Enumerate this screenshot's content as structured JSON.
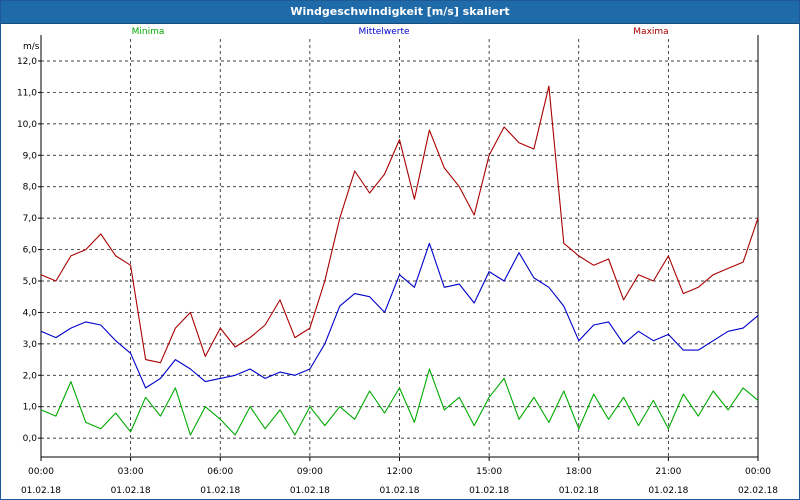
{
  "window": {
    "title": "Windgeschwindigkeit [m/s] skaliert"
  },
  "chart_data": {
    "type": "line",
    "title": "Windgeschwindigkeit [m/s] skaliert",
    "ylabel": "m/s",
    "ylim": [
      -0.6,
      12.7
    ],
    "xlim": [
      0,
      24
    ],
    "grid": true,
    "legend_position": "top",
    "y_ticks": [
      "0,0",
      "1,0",
      "2,0",
      "3,0",
      "4,0",
      "5,0",
      "6,0",
      "7,0",
      "8,0",
      "9,0",
      "10,0",
      "11,0",
      "12,0"
    ],
    "x_ticks": [
      {
        "time": "00:00",
        "date": "01.02.18"
      },
      {
        "time": "03:00",
        "date": "01.02.18"
      },
      {
        "time": "06:00",
        "date": "01.02.18"
      },
      {
        "time": "09:00",
        "date": "01.02.18"
      },
      {
        "time": "12:00",
        "date": "01.02.18"
      },
      {
        "time": "15:00",
        "date": "01.02.18"
      },
      {
        "time": "18:00",
        "date": "01.02.18"
      },
      {
        "time": "21:00",
        "date": "01.02.18"
      },
      {
        "time": "00:00",
        "date": "02.02.18"
      }
    ],
    "x_hours": [
      0,
      0.5,
      1,
      1.5,
      2,
      2.5,
      3,
      3.5,
      4,
      4.5,
      5,
      5.5,
      6,
      6.5,
      7,
      7.5,
      8,
      8.5,
      9,
      9.5,
      10,
      10.5,
      11,
      11.5,
      12,
      12.5,
      13,
      13.5,
      14,
      14.5,
      15,
      15.5,
      16,
      16.5,
      17,
      17.5,
      18,
      18.5,
      19,
      19.5,
      20,
      20.5,
      21,
      21.5,
      22,
      22.5,
      23,
      23.5,
      24
    ],
    "series": [
      {
        "name": "Minima",
        "color": "#00aa00",
        "values": [
          0.9,
          0.7,
          1.8,
          0.5,
          0.3,
          0.8,
          0.2,
          1.3,
          0.7,
          1.6,
          0.1,
          1.0,
          0.6,
          0.1,
          1.0,
          0.3,
          0.9,
          0.1,
          1.0,
          0.4,
          1.0,
          0.6,
          1.5,
          0.8,
          1.6,
          0.5,
          2.2,
          0.9,
          1.3,
          0.4,
          1.3,
          1.9,
          0.6,
          1.3,
          0.5,
          1.5,
          0.3,
          1.4,
          0.6,
          1.3,
          0.4,
          1.2,
          0.3,
          1.4,
          0.7,
          1.5,
          0.9,
          1.6,
          1.2
        ]
      },
      {
        "name": "Mittelwerte",
        "color": "#0000cc",
        "values": [
          3.4,
          3.2,
          3.5,
          3.7,
          3.6,
          3.1,
          2.7,
          1.6,
          1.9,
          2.5,
          2.2,
          1.8,
          1.9,
          2.0,
          2.2,
          1.9,
          2.1,
          2.0,
          2.2,
          3.0,
          4.2,
          4.6,
          4.5,
          4.0,
          5.2,
          4.8,
          6.2,
          4.8,
          4.9,
          4.3,
          5.3,
          5.0,
          5.9,
          5.1,
          4.8,
          4.2,
          3.1,
          3.6,
          3.7,
          3.0,
          3.4,
          3.1,
          3.3,
          2.8,
          2.8,
          3.1,
          3.4,
          3.5,
          3.9
        ]
      },
      {
        "name": "Maxima",
        "color": "#aa0000",
        "values": [
          5.2,
          5.0,
          5.8,
          6.0,
          6.5,
          5.8,
          5.5,
          2.5,
          2.4,
          3.5,
          4.0,
          2.6,
          3.5,
          2.9,
          3.2,
          3.6,
          4.4,
          3.2,
          3.5,
          5.0,
          7.0,
          8.5,
          7.8,
          8.4,
          9.5,
          7.6,
          9.8,
          8.6,
          8.0,
          7.1,
          9.0,
          9.9,
          9.4,
          9.2,
          11.2,
          6.2,
          5.8,
          5.5,
          5.7,
          4.4,
          5.2,
          5.0,
          5.8,
          4.6,
          4.8,
          5.2,
          5.4,
          5.6,
          7.0
        ]
      }
    ]
  }
}
